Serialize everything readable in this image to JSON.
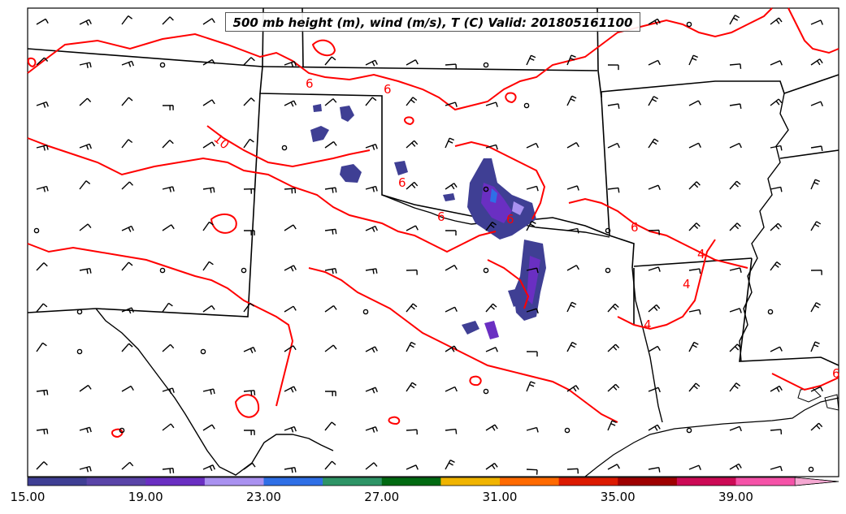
{
  "title": "500 mb height (m), wind (m/s), T (C) Valid: 201805161100",
  "contour_labels": [
    "6",
    "6",
    "6",
    "6",
    "10",
    "6",
    "6",
    "4",
    "4",
    "4",
    "6"
  ],
  "colorbar": {
    "tick_labels": [
      "15.00",
      "19.00",
      "23.00",
      "27.00",
      "31.00",
      "35.00",
      "39.00"
    ],
    "colors": [
      "#3f3f94",
      "#5a44a8",
      "#6a2fc2",
      "#a991f0",
      "#2f6fe6",
      "#2e9466",
      "#016a12",
      "#f0b400",
      "#ff6a00",
      "#dc1a00",
      "#9e0000",
      "#cc0a55",
      "#f552a8",
      "#f5a8d2"
    ]
  },
  "colors": {
    "contour": "#ff0000",
    "borders": "#000000",
    "barbs": "#000000"
  }
}
